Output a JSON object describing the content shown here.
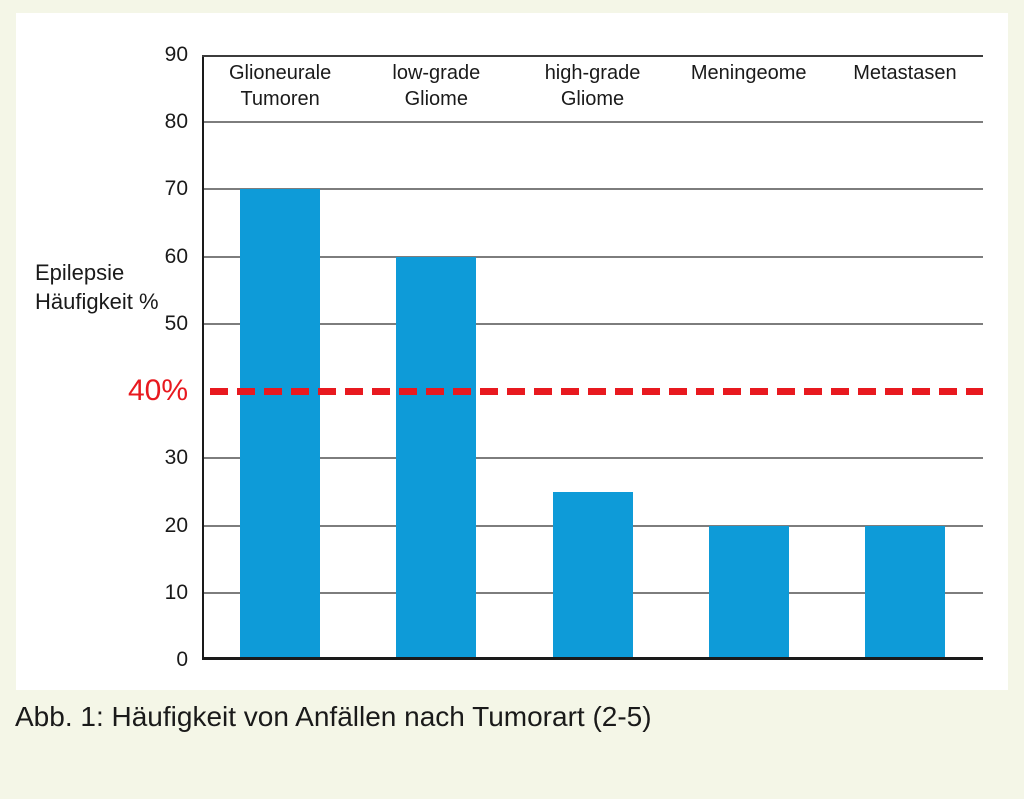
{
  "figure": {
    "caption": "Abb. 1: Häufigkeit von Anfällen nach Tumorart (2-5)"
  },
  "chart_data": {
    "type": "bar",
    "categories": [
      "Glioneurale\nTumoren",
      "low-grade\nGliome",
      "high-grade\nGliome",
      "Meningeome",
      "Metastasen"
    ],
    "values": [
      70,
      60,
      25,
      20,
      20
    ],
    "title": "",
    "xlabel": "",
    "ylabel": "Epilepsie\nHäufigkeit %",
    "ylim": [
      0,
      90
    ],
    "ytick_step": 10,
    "yticks_labeled": [
      0,
      10,
      20,
      30,
      50,
      60,
      70,
      80,
      90
    ],
    "threshold": {
      "value": 40,
      "label": "40%"
    },
    "grid": true,
    "legend": false,
    "colors": {
      "bar": "#0e9bd8",
      "threshold": "#e8191f",
      "panel_background": "#ffffff",
      "page_background": "#f4f6e7",
      "gridline": "#7d7d7d",
      "axis": "#1a1a1a",
      "text": "#1a1a1a"
    }
  }
}
